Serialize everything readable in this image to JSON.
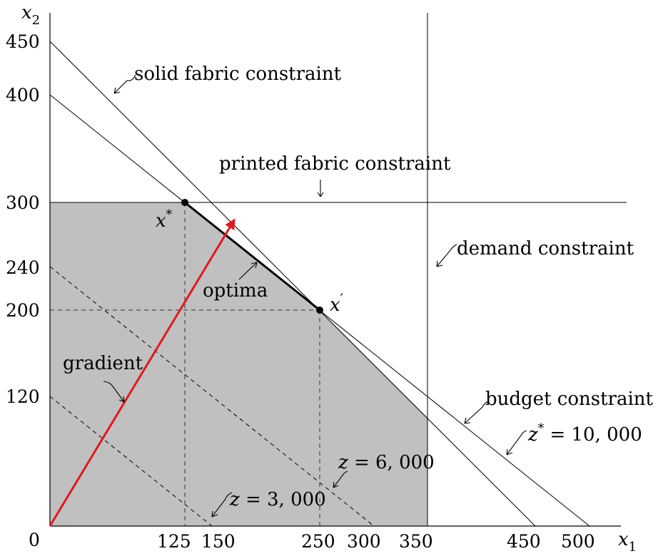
{
  "diagram": {
    "axes": {
      "x_label": "x",
      "x_sub": "1",
      "y_label": "x",
      "y_sub": "2",
      "origin_label": "0",
      "x_ticks": [
        "125",
        "150",
        "250",
        "300",
        "350",
        "450",
        "500"
      ],
      "y_ticks": [
        "450",
        "400",
        "300",
        "240",
        "200",
        "120"
      ]
    },
    "labels": {
      "solid_fabric": "solid fabric constraint",
      "printed_fabric": "printed fabric constraint",
      "demand": "demand constraint",
      "budget": "budget constraint",
      "optima": "optima",
      "gradient": "gradient"
    },
    "points": {
      "x_star": {
        "base": "x",
        "sup": "*",
        "coord": [
          125,
          300
        ]
      },
      "x_prime": {
        "base": "x",
        "sup": "′",
        "coord": [
          250,
          200
        ]
      }
    },
    "isoprofit": {
      "z_star": {
        "lhs": "z",
        "sup": "*",
        "rhs": " = 10, 000"
      },
      "z6000": {
        "lhs": "z",
        "rhs": " = 6, 000"
      },
      "z3000": {
        "lhs": "z",
        "rhs": " = 3, 000"
      }
    },
    "colors": {
      "feasible_region": "#c0c0c0",
      "gradient_arrow": "#e0191e",
      "lines": "#000000"
    }
  }
}
